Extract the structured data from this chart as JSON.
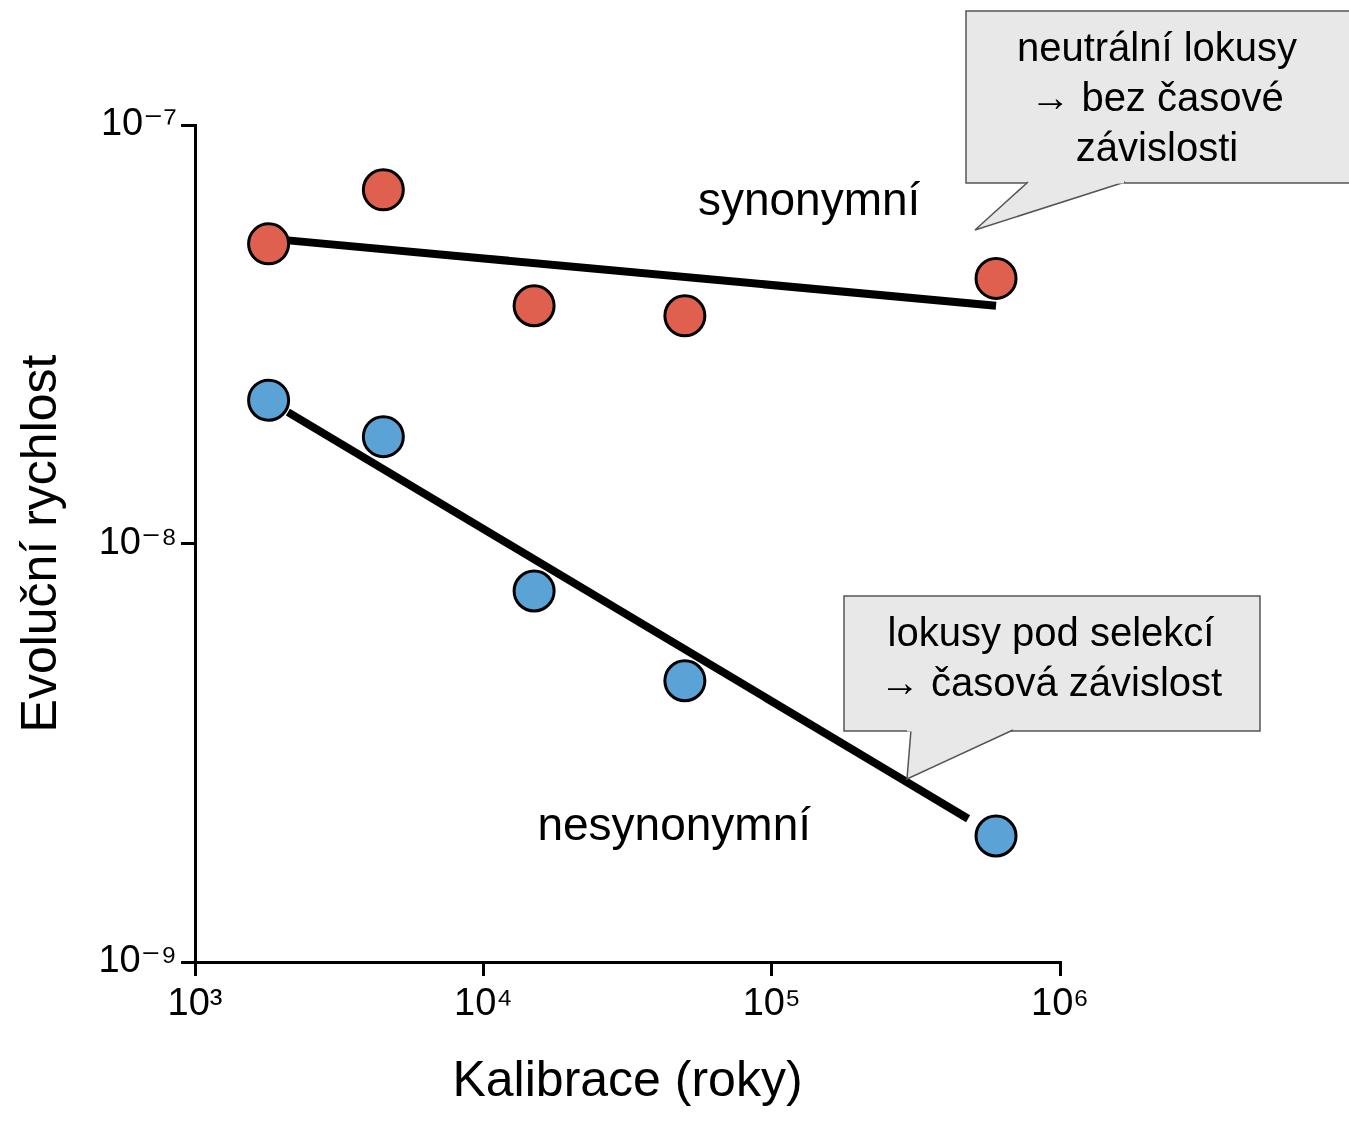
{
  "chart_data": {
    "type": "scatter",
    "xlabel": "Kalibrace (roky)",
    "ylabel": "Evoluční rychlost",
    "log": "xy",
    "xlim": [
      1000,
      1000000
    ],
    "xticks": [
      {
        "value": 1000,
        "label": "10³"
      },
      {
        "value": 10000,
        "label": "10⁴"
      },
      {
        "value": 100000,
        "label": "10⁵"
      },
      {
        "value": 1000000,
        "label": "10⁶"
      }
    ],
    "ylim": [
      1e-09,
      1e-07
    ],
    "yticks": [
      {
        "value": 1e-09,
        "label": "10⁻⁹"
      },
      {
        "value": 1e-08,
        "label": "10⁻⁸"
      },
      {
        "value": 1e-07,
        "label": "10⁻⁷"
      }
    ],
    "grid": false,
    "legend": false,
    "marker": "circle",
    "series": [
      {
        "name": "synonymní",
        "color": "#e0604f",
        "x": [
          1800,
          4500,
          15000,
          50000,
          600000
        ],
        "values": [
          5.2e-08,
          7e-08,
          3.7e-08,
          3.5e-08,
          4.3e-08
        ]
      },
      {
        "name": "nesynonymní",
        "color": "#5ba3d6",
        "x": [
          1800,
          4500,
          15000,
          50000,
          600000
        ],
        "values": [
          2.2e-08,
          1.8e-08,
          7.7e-09,
          4.7e-09,
          2e-09
        ]
      },
      {
        "type": "line",
        "marker": "none",
        "color": "#000000",
        "x": [
          2100,
          600000
        ],
        "values": [
          5.3e-08,
          3.7e-08
        ]
      },
      {
        "type": "line",
        "marker": "none",
        "color": "#000000",
        "x": [
          2100,
          480000
        ],
        "values": [
          2.06e-08,
          2.2e-09
        ]
      }
    ],
    "annotations": [
      "neutrální lokusy\n→ bez časové\nzávislosti",
      "lokusy pod selekcí\n→ časová závislost"
    ]
  }
}
